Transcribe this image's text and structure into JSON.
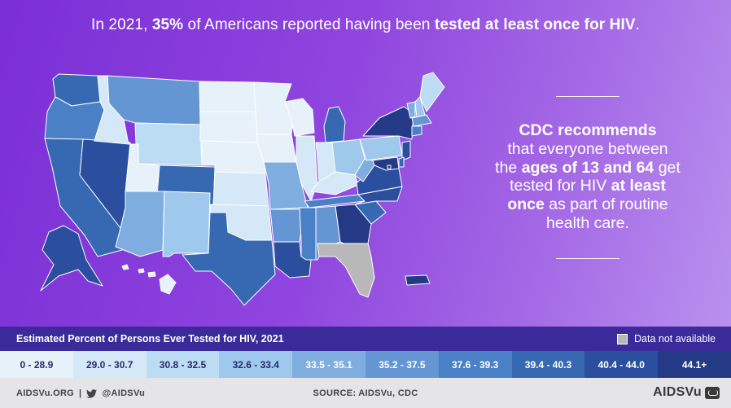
{
  "headline": {
    "part1": "In 2021, ",
    "stat": "35%",
    "part2": " of Americans reported having been ",
    "emph": "tested at least once for HIV",
    "part3": "."
  },
  "aside": {
    "l1_bold": "CDC recommends",
    "l2": "that everyone between",
    "l3_pre": "the ",
    "l3_bold": "ages of 13 and 64",
    "l3_post": " get",
    "l4_pre": "tested for HIV ",
    "l4_bold": "at least",
    "l5_bold": "once",
    "l5_post": " as part of routine",
    "l6": "health care."
  },
  "legend": {
    "title": "Estimated Percent of Persons Ever Tested for HIV, 2021",
    "not_available": "Data not available",
    "not_available_color": "#b8b8b8",
    "bins": [
      {
        "label": "0 - 28.9",
        "color": "#e6f1fa",
        "text_color": "#2a2a6a"
      },
      {
        "label": "29.0 - 30.7",
        "color": "#d4e8f7",
        "text_color": "#2a2a6a"
      },
      {
        "label": "30.8 - 32.5",
        "color": "#bcdcf3",
        "text_color": "#2a2a6a"
      },
      {
        "label": "32.6 - 33.4",
        "color": "#9ec8ec",
        "text_color": "#2a2a6a"
      },
      {
        "label": "33.5 - 35.1",
        "color": "#7faddf",
        "text_color": "#ffffff"
      },
      {
        "label": "35.2 - 37.5",
        "color": "#6496d3",
        "text_color": "#ffffff"
      },
      {
        "label": "37.6 - 39.3",
        "color": "#4a80c6",
        "text_color": "#ffffff"
      },
      {
        "label": "39.4 - 40.3",
        "color": "#3769b3",
        "text_color": "#ffffff"
      },
      {
        "label": "40.4 - 44.0",
        "color": "#2b4f9e",
        "text_color": "#ffffff"
      },
      {
        "label": "44.1+",
        "color": "#243a86",
        "text_color": "#ffffff"
      }
    ]
  },
  "footer": {
    "site": "AIDSVu.ORG",
    "divider": "|",
    "handle": "@AIDSVu",
    "source": "SOURCE: AIDSVu, CDC",
    "logo_text": "AIDSVu"
  },
  "map": {
    "states": [
      {
        "id": "WA",
        "bin": 7
      },
      {
        "id": "OR",
        "bin": 6
      },
      {
        "id": "CA",
        "bin": 7
      },
      {
        "id": "NV",
        "bin": 8
      },
      {
        "id": "ID",
        "bin": 1
      },
      {
        "id": "MT",
        "bin": 5
      },
      {
        "id": "WY",
        "bin": 2
      },
      {
        "id": "UT",
        "bin": 0
      },
      {
        "id": "CO",
        "bin": 7
      },
      {
        "id": "AZ",
        "bin": 4
      },
      {
        "id": "NM",
        "bin": 3
      },
      {
        "id": "ND",
        "bin": 0
      },
      {
        "id": "SD",
        "bin": 0
      },
      {
        "id": "NE",
        "bin": 0
      },
      {
        "id": "KS",
        "bin": 1
      },
      {
        "id": "OK",
        "bin": 1
      },
      {
        "id": "TX",
        "bin": 7
      },
      {
        "id": "MN",
        "bin": 0
      },
      {
        "id": "IA",
        "bin": 0
      },
      {
        "id": "MO",
        "bin": 4
      },
      {
        "id": "AR",
        "bin": 5
      },
      {
        "id": "LA",
        "bin": 8
      },
      {
        "id": "WI",
        "bin": 0
      },
      {
        "id": "IL",
        "bin": 1
      },
      {
        "id": "MI",
        "bin": 7
      },
      {
        "id": "IN",
        "bin": 1
      },
      {
        "id": "OH",
        "bin": 3
      },
      {
        "id": "KY",
        "bin": 1
      },
      {
        "id": "TN",
        "bin": 6
      },
      {
        "id": "MS",
        "bin": 6
      },
      {
        "id": "AL",
        "bin": 5
      },
      {
        "id": "GA",
        "bin": 9
      },
      {
        "id": "FL",
        "bin": -1
      },
      {
        "id": "SC",
        "bin": 7
      },
      {
        "id": "NC",
        "bin": 8
      },
      {
        "id": "VA",
        "bin": 8
      },
      {
        "id": "WV",
        "bin": 4
      },
      {
        "id": "PA",
        "bin": 3
      },
      {
        "id": "NY",
        "bin": 9
      },
      {
        "id": "VT",
        "bin": 4
      },
      {
        "id": "NH",
        "bin": 3
      },
      {
        "id": "ME",
        "bin": 2
      },
      {
        "id": "MA",
        "bin": 5
      },
      {
        "id": "CT",
        "bin": 6
      },
      {
        "id": "NJ",
        "bin": 8
      },
      {
        "id": "DE",
        "bin": 7
      },
      {
        "id": "MD",
        "bin": 9
      },
      {
        "id": "DC",
        "bin": 9
      },
      {
        "id": "AK",
        "bin": 8
      },
      {
        "id": "HI",
        "bin": 0
      },
      {
        "id": "PR",
        "bin": 9
      }
    ]
  }
}
